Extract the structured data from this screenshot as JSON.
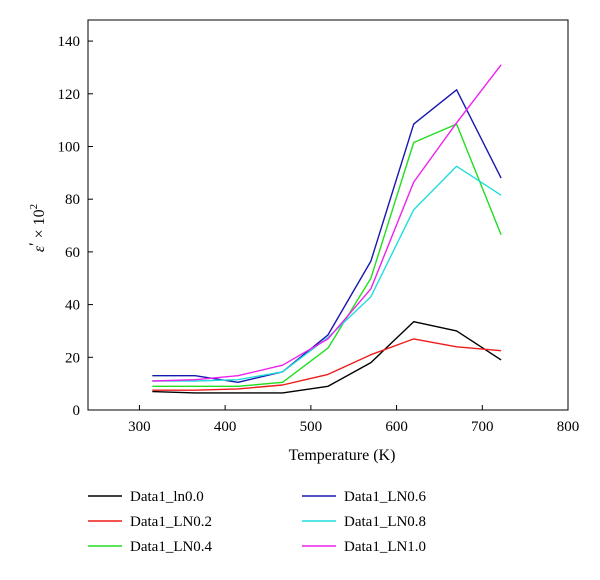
{
  "chart_data": {
    "type": "line",
    "title": "",
    "xlabel": "Temperature (K)",
    "ylabel_base": "ε",
    "ylabel_prime": "′",
    "ylabel_times": " × 10",
    "ylabel_exponent": "2",
    "xlim": [
      240,
      800
    ],
    "ylim": [
      0,
      148
    ],
    "xticks": [
      300,
      400,
      500,
      600,
      700,
      800
    ],
    "yticks": [
      0,
      20,
      40,
      60,
      80,
      100,
      120,
      140
    ],
    "grid": false,
    "legend_position": "below",
    "x": [
      315,
      365,
      415,
      467,
      520,
      570,
      620,
      670,
      722
    ],
    "series": [
      {
        "name": "Data1_ln0.0",
        "color": "#000000",
        "values": [
          7,
          6.5,
          6.5,
          6.5,
          9,
          18,
          33.5,
          30,
          19
        ]
      },
      {
        "name": "Data1_LN0.2",
        "color": "#ee1c1c",
        "values": [
          7.5,
          7.5,
          8,
          9.5,
          13.5,
          21,
          27,
          24,
          22.5
        ]
      },
      {
        "name": "Data1_LN0.4",
        "color": "#22dd22",
        "values": [
          9,
          9,
          9,
          10.5,
          23.5,
          50,
          101.5,
          108.5,
          66.5
        ]
      },
      {
        "name": "Data1_LN0.6",
        "color": "#1818b0",
        "values": [
          13,
          13,
          10.5,
          14.5,
          28.5,
          56.5,
          108.5,
          121.5,
          88
        ]
      },
      {
        "name": "Data1_LN0.8",
        "color": "#22dddd",
        "values": [
          11,
          11,
          11.5,
          14.5,
          27.5,
          43,
          76,
          92.5,
          81.5
        ]
      },
      {
        "name": "Data1_LN1.0",
        "color": "#ee22ee",
        "values": [
          11,
          11.5,
          13,
          17,
          27,
          46,
          86.5,
          109,
          131
        ]
      }
    ]
  }
}
